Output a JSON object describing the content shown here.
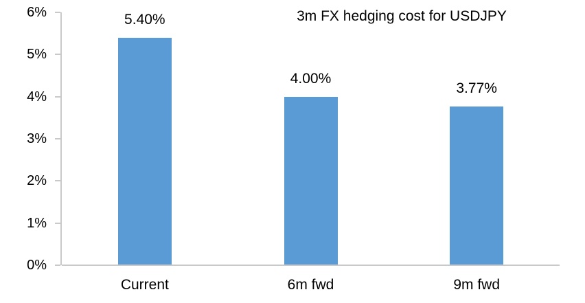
{
  "colors": {
    "bar_fill": "#5B9BD5",
    "axis_line": "#C9C9C9",
    "text": "#000000",
    "background": "#FFFFFF"
  },
  "chart_data": {
    "type": "bar",
    "title": "3m FX hedging cost for USDJPY",
    "categories": [
      "Current",
      "6m fwd",
      "9m fwd"
    ],
    "values": [
      5.4,
      4.0,
      3.77
    ],
    "data_labels": [
      "5.40%",
      "4.00%",
      "3.77%"
    ],
    "xlabel": "",
    "ylabel": "",
    "ylim": [
      0,
      6
    ],
    "ytick_values": [
      0,
      1,
      2,
      3,
      4,
      5,
      6
    ],
    "ytick_labels": [
      "0%",
      "1%",
      "2%",
      "3%",
      "4%",
      "5%",
      "6%"
    ],
    "grid": false,
    "legend": false,
    "data_label_position": "outside-end"
  }
}
